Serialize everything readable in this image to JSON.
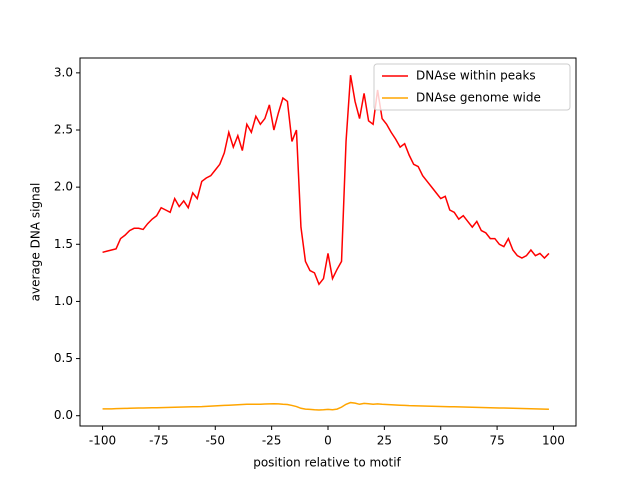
{
  "chart_data": {
    "type": "line",
    "xlabel": "position relative to motif",
    "ylabel": "average DNA signal",
    "x": [
      -100,
      -98,
      -96,
      -94,
      -92,
      -90,
      -88,
      -86,
      -84,
      -82,
      -80,
      -78,
      -76,
      -74,
      -72,
      -70,
      -68,
      -66,
      -64,
      -62,
      -60,
      -58,
      -56,
      -54,
      -52,
      -50,
      -48,
      -46,
      -44,
      -42,
      -40,
      -38,
      -36,
      -34,
      -32,
      -30,
      -28,
      -26,
      -24,
      -22,
      -20,
      -18,
      -16,
      -14,
      -12,
      -10,
      -8,
      -6,
      -4,
      -2,
      0,
      2,
      4,
      6,
      8,
      10,
      12,
      14,
      16,
      18,
      20,
      22,
      24,
      26,
      28,
      30,
      32,
      34,
      36,
      38,
      40,
      42,
      44,
      46,
      48,
      50,
      52,
      54,
      56,
      58,
      60,
      62,
      64,
      66,
      68,
      70,
      72,
      74,
      76,
      78,
      80,
      82,
      84,
      86,
      88,
      90,
      92,
      94,
      96,
      98
    ],
    "series": [
      {
        "name": "DNAse within peaks",
        "color": "#ff0000",
        "values": [
          1.43,
          1.44,
          1.45,
          1.46,
          1.55,
          1.58,
          1.62,
          1.64,
          1.64,
          1.63,
          1.68,
          1.72,
          1.75,
          1.82,
          1.8,
          1.78,
          1.9,
          1.83,
          1.88,
          1.82,
          1.95,
          1.9,
          2.05,
          2.08,
          2.1,
          2.15,
          2.2,
          2.3,
          2.48,
          2.35,
          2.45,
          2.32,
          2.55,
          2.48,
          2.62,
          2.55,
          2.6,
          2.72,
          2.5,
          2.65,
          2.78,
          2.75,
          2.4,
          2.5,
          1.65,
          1.35,
          1.27,
          1.25,
          1.15,
          1.2,
          1.42,
          1.2,
          1.28,
          1.35,
          2.4,
          2.98,
          2.75,
          2.6,
          2.82,
          2.58,
          2.55,
          2.85,
          2.6,
          2.55,
          2.48,
          2.42,
          2.35,
          2.38,
          2.28,
          2.2,
          2.18,
          2.1,
          2.05,
          2.0,
          1.95,
          1.9,
          1.92,
          1.8,
          1.78,
          1.72,
          1.75,
          1.7,
          1.65,
          1.7,
          1.62,
          1.6,
          1.55,
          1.55,
          1.5,
          1.48,
          1.55,
          1.45,
          1.4,
          1.38,
          1.4,
          1.45,
          1.4,
          1.42,
          1.38,
          1.42
        ]
      },
      {
        "name": "DNAse genome wide",
        "color": "#ffa500",
        "values": [
          0.06,
          0.06,
          0.06,
          0.062,
          0.063,
          0.064,
          0.065,
          0.066,
          0.067,
          0.068,
          0.069,
          0.07,
          0.07,
          0.071,
          0.072,
          0.073,
          0.074,
          0.075,
          0.076,
          0.077,
          0.078,
          0.079,
          0.08,
          0.082,
          0.084,
          0.086,
          0.088,
          0.09,
          0.092,
          0.094,
          0.096,
          0.098,
          0.1,
          0.1,
          0.1,
          0.1,
          0.102,
          0.104,
          0.105,
          0.104,
          0.1,
          0.098,
          0.09,
          0.08,
          0.065,
          0.058,
          0.055,
          0.052,
          0.05,
          0.052,
          0.055,
          0.052,
          0.058,
          0.075,
          0.1,
          0.115,
          0.11,
          0.1,
          0.108,
          0.105,
          0.1,
          0.104,
          0.1,
          0.098,
          0.096,
          0.094,
          0.092,
          0.09,
          0.088,
          0.087,
          0.086,
          0.085,
          0.084,
          0.083,
          0.082,
          0.081,
          0.08,
          0.079,
          0.078,
          0.077,
          0.076,
          0.075,
          0.074,
          0.073,
          0.072,
          0.071,
          0.07,
          0.069,
          0.068,
          0.067,
          0.066,
          0.065,
          0.064,
          0.063,
          0.062,
          0.061,
          0.06,
          0.059,
          0.058,
          0.057
        ]
      }
    ],
    "xlim": [
      -110,
      110
    ],
    "xticks": [
      -100,
      -75,
      -50,
      -25,
      0,
      25,
      50,
      75,
      100
    ],
    "ylim": [
      -0.09,
      3.13
    ],
    "yticks": [
      {
        "value": 0,
        "label": "0.0"
      },
      {
        "value": 0.5,
        "label": "0.5"
      },
      {
        "value": 1,
        "label": "1.0"
      },
      {
        "value": 1.5,
        "label": "1.5"
      },
      {
        "value": 2,
        "label": "2.0"
      },
      {
        "value": 2.5,
        "label": "2.5"
      },
      {
        "value": 3,
        "label": "3.0"
      }
    ],
    "legend": "upper right"
  }
}
